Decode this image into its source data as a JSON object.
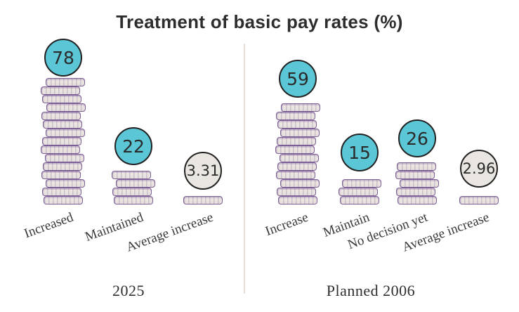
{
  "title": "Treatment of basic pay rates (%)",
  "chart_data": {
    "type": "bar",
    "subtype": "coin-stack pictogram",
    "unit": "%",
    "coin_unit_percent": 5,
    "groups": [
      {
        "name": "2025",
        "items": [
          {
            "label": "Increased",
            "value": "78",
            "coins": 15,
            "badge": "teal"
          },
          {
            "label": "Maintained",
            "value": "22",
            "coins": 4,
            "badge": "teal"
          },
          {
            "label": "Average increase",
            "value": "3.31",
            "coins": 1,
            "badge": "gray"
          }
        ]
      },
      {
        "name": "Planned 2006",
        "items": [
          {
            "label": "Increase",
            "value": "59",
            "coins": 12,
            "badge": "teal"
          },
          {
            "label": "Maintain",
            "value": "15",
            "coins": 3,
            "badge": "teal"
          },
          {
            "label": "No decision yet",
            "value": "26",
            "coins": 5,
            "badge": "teal"
          },
          {
            "label": "Average increase",
            "value": "2.96",
            "coins": 1,
            "badge": "gray"
          }
        ]
      }
    ],
    "colors": {
      "badge_teal": "#5bc6d6",
      "badge_neutral": "#e9e5e0",
      "badge_border": "#222222",
      "coin_fill": "#ece7e3",
      "coin_border": "#7d5f98",
      "title_text": "#2d2d2d",
      "divider": "#e9ded7"
    }
  }
}
